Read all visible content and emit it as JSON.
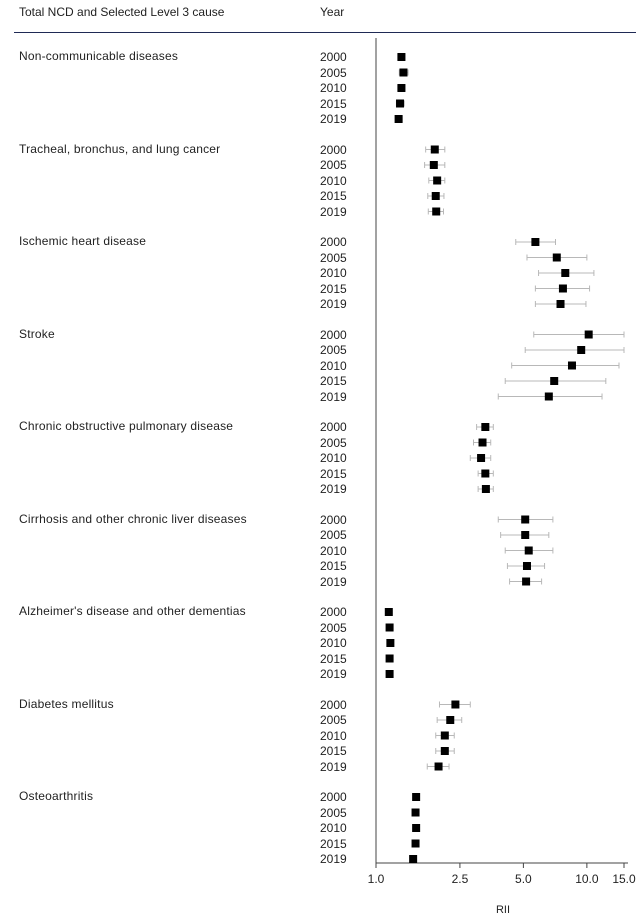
{
  "header": {
    "cause_col": "Total NCD and Selected Level 3 cause",
    "year_col": "Year"
  },
  "chart_data": {
    "type": "forest",
    "xlabel": "RII",
    "xscale": "log",
    "xlim": [
      1.0,
      15.0
    ],
    "xticks": [
      1.0,
      2.5,
      5.0,
      10.0,
      15.0
    ],
    "xtick_labels": [
      "1.0",
      "2.5",
      "5.0",
      "10.0",
      "15.0"
    ],
    "years": [
      "2000",
      "2005",
      "2010",
      "2015",
      "2019"
    ],
    "groups": [
      {
        "label": "Non-communicable diseases",
        "points": [
          {
            "year": "2000",
            "rii": 1.32,
            "lo": 1.27,
            "hi": 1.37
          },
          {
            "year": "2005",
            "rii": 1.35,
            "lo": 1.29,
            "hi": 1.42
          },
          {
            "year": "2010",
            "rii": 1.32,
            "lo": 1.27,
            "hi": 1.37
          },
          {
            "year": "2015",
            "rii": 1.3,
            "lo": 1.25,
            "hi": 1.36
          },
          {
            "year": "2019",
            "rii": 1.28,
            "lo": 1.24,
            "hi": 1.33
          }
        ]
      },
      {
        "label": "Tracheal, bronchus, and lung cancer",
        "points": [
          {
            "year": "2000",
            "rii": 1.9,
            "lo": 1.72,
            "hi": 2.12
          },
          {
            "year": "2005",
            "rii": 1.88,
            "lo": 1.7,
            "hi": 2.12
          },
          {
            "year": "2010",
            "rii": 1.95,
            "lo": 1.78,
            "hi": 2.12
          },
          {
            "year": "2015",
            "rii": 1.92,
            "lo": 1.76,
            "hi": 2.1
          },
          {
            "year": "2019",
            "rii": 1.93,
            "lo": 1.77,
            "hi": 2.09
          }
        ]
      },
      {
        "label": "Ischemic heart disease",
        "points": [
          {
            "year": "2000",
            "rii": 5.7,
            "lo": 4.6,
            "hi": 7.1
          },
          {
            "year": "2005",
            "rii": 7.2,
            "lo": 5.2,
            "hi": 10.0
          },
          {
            "year": "2010",
            "rii": 7.9,
            "lo": 5.9,
            "hi": 10.8
          },
          {
            "year": "2015",
            "rii": 7.7,
            "lo": 5.7,
            "hi": 10.3
          },
          {
            "year": "2019",
            "rii": 7.5,
            "lo": 5.7,
            "hi": 9.9
          }
        ]
      },
      {
        "label": "Stroke",
        "points": [
          {
            "year": "2000",
            "rii": 10.2,
            "lo": 5.6,
            "hi": 15.0
          },
          {
            "year": "2005",
            "rii": 9.4,
            "lo": 5.1,
            "hi": 15.0
          },
          {
            "year": "2010",
            "rii": 8.5,
            "lo": 4.4,
            "hi": 14.2
          },
          {
            "year": "2015",
            "rii": 7.0,
            "lo": 4.1,
            "hi": 12.3
          },
          {
            "year": "2019",
            "rii": 6.6,
            "lo": 3.8,
            "hi": 11.8
          }
        ]
      },
      {
        "label": "Chronic obstructive pulmonary disease",
        "points": [
          {
            "year": "2000",
            "rii": 3.3,
            "lo": 3.0,
            "hi": 3.6
          },
          {
            "year": "2005",
            "rii": 3.2,
            "lo": 2.9,
            "hi": 3.5
          },
          {
            "year": "2010",
            "rii": 3.15,
            "lo": 2.8,
            "hi": 3.5
          },
          {
            "year": "2015",
            "rii": 3.3,
            "lo": 3.05,
            "hi": 3.6
          },
          {
            "year": "2019",
            "rii": 3.32,
            "lo": 3.05,
            "hi": 3.6
          }
        ]
      },
      {
        "label": "Cirrhosis and other chronic liver diseases",
        "points": [
          {
            "year": "2000",
            "rii": 5.1,
            "lo": 3.8,
            "hi": 6.9
          },
          {
            "year": "2005",
            "rii": 5.1,
            "lo": 3.9,
            "hi": 6.6
          },
          {
            "year": "2010",
            "rii": 5.3,
            "lo": 4.1,
            "hi": 6.9
          },
          {
            "year": "2015",
            "rii": 5.2,
            "lo": 4.2,
            "hi": 6.3
          },
          {
            "year": "2019",
            "rii": 5.15,
            "lo": 4.3,
            "hi": 6.1
          }
        ]
      },
      {
        "label": "Alzheimer's disease and other dementias",
        "points": [
          {
            "year": "2000",
            "rii": 1.15,
            "lo": 1.14,
            "hi": 1.16
          },
          {
            "year": "2005",
            "rii": 1.16,
            "lo": 1.15,
            "hi": 1.17
          },
          {
            "year": "2010",
            "rii": 1.17,
            "lo": 1.16,
            "hi": 1.18
          },
          {
            "year": "2015",
            "rii": 1.16,
            "lo": 1.15,
            "hi": 1.17
          },
          {
            "year": "2019",
            "rii": 1.16,
            "lo": 1.15,
            "hi": 1.17
          }
        ]
      },
      {
        "label": "Diabetes mellitus",
        "points": [
          {
            "year": "2000",
            "rii": 2.38,
            "lo": 2.0,
            "hi": 2.8
          },
          {
            "year": "2005",
            "rii": 2.25,
            "lo": 1.95,
            "hi": 2.55
          },
          {
            "year": "2010",
            "rii": 2.12,
            "lo": 1.92,
            "hi": 2.35
          },
          {
            "year": "2015",
            "rii": 2.12,
            "lo": 1.92,
            "hi": 2.35
          },
          {
            "year": "2019",
            "rii": 1.98,
            "lo": 1.75,
            "hi": 2.22
          }
        ]
      },
      {
        "label": "Osteoarthritis",
        "points": [
          {
            "year": "2000",
            "rii": 1.55,
            "lo": 1.53,
            "hi": 1.57
          },
          {
            "year": "2005",
            "rii": 1.54,
            "lo": 1.52,
            "hi": 1.56
          },
          {
            "year": "2010",
            "rii": 1.55,
            "lo": 1.53,
            "hi": 1.57
          },
          {
            "year": "2015",
            "rii": 1.54,
            "lo": 1.52,
            "hi": 1.56
          },
          {
            "year": "2019",
            "rii": 1.5,
            "lo": 1.48,
            "hi": 1.52
          }
        ]
      }
    ]
  }
}
